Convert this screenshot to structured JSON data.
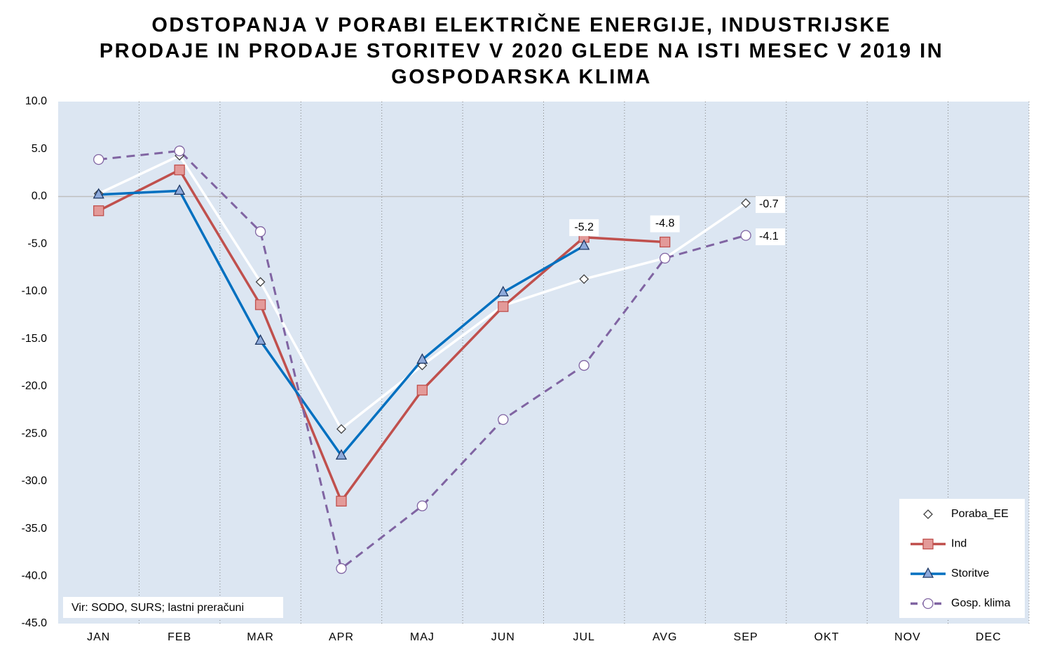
{
  "chart_data": {
    "type": "line",
    "title": "ODSTOPANJA V PORABI ELEKTRIČNE ENERGIJE, INDUSTRIJSKE PRODAJE IN PRODAJE STORITEV V 2020 GLEDE NA ISTI MESEC V 2019 IN GOSPODARSKA KLIMA",
    "annotation": "Vir: SODO, SURS; lastni preračuni",
    "categories": [
      "JAN",
      "FEB",
      "MAR",
      "APR",
      "MAJ",
      "JUN",
      "JUL",
      "AVG",
      "SEP",
      "OKT",
      "NOV",
      "DEC"
    ],
    "ylim": [
      -45,
      10
    ],
    "yticks": [
      {
        "value": 10,
        "label": "10.0"
      },
      {
        "value": 5,
        "label": "5.0"
      },
      {
        "value": 0,
        "label": "0.0"
      },
      {
        "value": -5,
        "label": "-5.0"
      },
      {
        "value": -10,
        "label": "-10.0"
      },
      {
        "value": -15,
        "label": "-15.0"
      },
      {
        "value": -20,
        "label": "-20.0"
      },
      {
        "value": -25,
        "label": "-25.0"
      },
      {
        "value": -30,
        "label": "-30.0"
      },
      {
        "value": -35,
        "label": "-35.0"
      },
      {
        "value": -40,
        "label": "-40.0"
      },
      {
        "value": -45,
        "label": "-45.0"
      }
    ],
    "legend": "lower right",
    "plot_background": "#dce6f2",
    "series": [
      {
        "name": "Poraba_EE",
        "color": "#ffffff",
        "marker": "diamond",
        "marker_fill": "#ffffff",
        "marker_stroke": "#404040",
        "dash": false,
        "values": [
          0.3,
          4.3,
          -9.0,
          -24.5,
          -17.8,
          -11.5,
          -8.7,
          -6.5,
          -0.7,
          null,
          null,
          null
        ],
        "value_labels": [
          null,
          null,
          null,
          null,
          null,
          null,
          null,
          null,
          "-0.7",
          null,
          null,
          null
        ]
      },
      {
        "name": "Ind",
        "color": "#c0504d",
        "marker": "square",
        "marker_fill": "#e39a99",
        "marker_stroke": "#c0504d",
        "dash": false,
        "values": [
          -1.5,
          2.8,
          -11.4,
          -32.1,
          -20.4,
          -11.6,
          -4.3,
          -4.8,
          null,
          null,
          null,
          null
        ],
        "value_labels": [
          null,
          null,
          null,
          null,
          null,
          null,
          null,
          "-4.8",
          null,
          null,
          null,
          null
        ]
      },
      {
        "name": "Storitve",
        "color": "#0070c0",
        "marker": "triangle",
        "marker_fill": "#8eaadb",
        "marker_stroke": "#1f3864",
        "dash": false,
        "values": [
          0.2,
          0.6,
          -15.2,
          -27.3,
          -17.2,
          -10.1,
          -5.2,
          null,
          null,
          null,
          null,
          null
        ],
        "value_labels": [
          null,
          null,
          null,
          null,
          null,
          null,
          "-5.2",
          null,
          null,
          null,
          null,
          null
        ]
      },
      {
        "name": "Gosp. klima",
        "color": "#8064a2",
        "marker": "circle",
        "marker_fill": "#ffffff",
        "marker_stroke": "#8064a2",
        "dash": true,
        "values": [
          3.9,
          4.8,
          -3.7,
          -39.2,
          -32.6,
          -23.5,
          -17.8,
          -6.5,
          -4.1,
          null,
          null,
          null
        ],
        "value_labels": [
          null,
          null,
          null,
          null,
          null,
          null,
          null,
          null,
          "-4.1",
          null,
          null,
          null
        ]
      }
    ]
  }
}
